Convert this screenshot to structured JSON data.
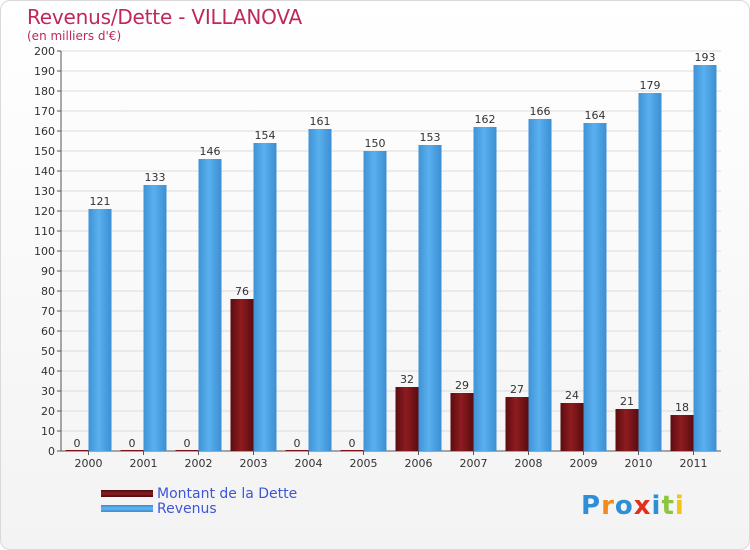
{
  "header": {
    "title": "Revenus/Dette - VILLANOVA",
    "subtitle": "(en milliers d'€)"
  },
  "legend": [
    {
      "label": "Montant de la Dette",
      "color": "#7a1418"
    },
    {
      "label": "Revenus",
      "color": "#4aa3e6"
    }
  ],
  "logo": {
    "text": "Proxiti",
    "letters": [
      {
        "char": "P",
        "color": "#2f8fd6"
      },
      {
        "char": "r",
        "color": "#f08a1d"
      },
      {
        "char": "o",
        "color": "#2f8fd6"
      },
      {
        "char": "x",
        "color": "#e0301e"
      },
      {
        "char": "i",
        "color": "#2f8fd6"
      },
      {
        "char": "t",
        "color": "#8cc63e"
      },
      {
        "char": "i",
        "color": "#f0c419"
      }
    ]
  },
  "chart_data": {
    "type": "bar",
    "title": "Revenus/Dette - VILLANOVA",
    "subtitle": "(en milliers d'€)",
    "categories": [
      "2000",
      "2001",
      "2002",
      "2003",
      "2004",
      "2005",
      "2006",
      "2007",
      "2008",
      "2009",
      "2010",
      "2011"
    ],
    "series": [
      {
        "name": "Montant de la Dette",
        "color": "#7a1418",
        "values": [
          0,
          0,
          0,
          76,
          0,
          0,
          32,
          29,
          27,
          24,
          21,
          18
        ]
      },
      {
        "name": "Revenus",
        "color": "#4aa3e6",
        "values": [
          121,
          133,
          146,
          154,
          161,
          150,
          153,
          162,
          166,
          164,
          179,
          193
        ]
      }
    ],
    "ylim": [
      0,
      200
    ],
    "yticks": [
      0,
      10,
      20,
      30,
      40,
      50,
      60,
      70,
      80,
      90,
      100,
      110,
      120,
      130,
      140,
      150,
      160,
      170,
      180,
      190,
      200
    ],
    "grid": true,
    "legend_position": "bottom-left"
  }
}
